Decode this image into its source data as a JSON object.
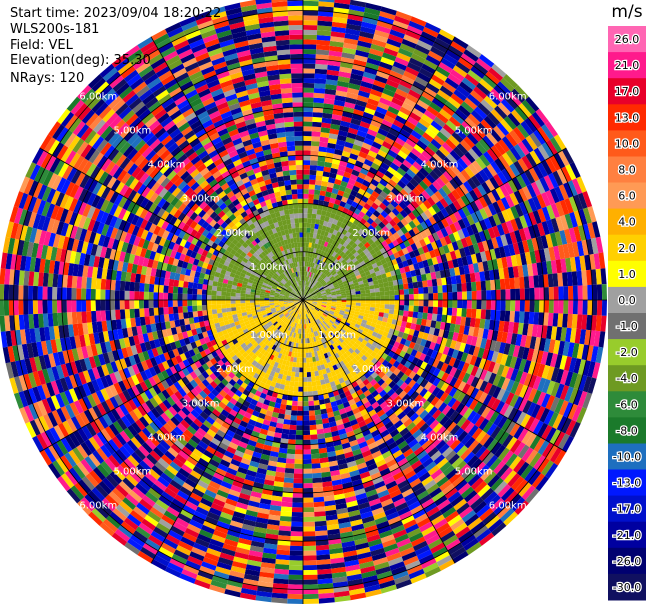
{
  "header": {
    "start_time": "Start time: 2023/09/04 18:20:22",
    "instrument": "WLS200s-181",
    "field": "Field: VEL",
    "elevation": "Elevation(deg): 35.30",
    "nrays": "NRays: 120"
  },
  "colorbar": {
    "unit": "m/s",
    "labels": [
      "26.0",
      "21.0",
      "17.0",
      "13.0",
      "10.0",
      "8.0",
      "6.0",
      "4.0",
      "2.0",
      "1.0",
      "0.0",
      "-1.0",
      "-2.0",
      "-4.0",
      "-6.0",
      "-8.0",
      "-10.0",
      "-13.0",
      "-17.0",
      "-21.0",
      "-26.0",
      "-30.0"
    ],
    "colors": [
      "#ff66b3",
      "#ff1a8c",
      "#e8002a",
      "#ff2a00",
      "#ff5a1a",
      "#ff8040",
      "#ff9a55",
      "#ffb000",
      "#ffd000",
      "#ffff00",
      "#a0a0a0",
      "#707070",
      "#98cc2c",
      "#6e9a22",
      "#2e8b3a",
      "#1b7a2b",
      "#1e6fbf",
      "#0018ff",
      "#0010cc",
      "#0000a0",
      "#000070",
      "#101060"
    ]
  },
  "chart_data": {
    "type": "heatmap",
    "projection": "polar PPI",
    "field": "VEL",
    "unit": "m/s",
    "nrays": 120,
    "range_rings_km": [
      1.0,
      2.0,
      3.0,
      4.0,
      5.0,
      6.0
    ],
    "range_ring_labels": [
      "1.00km",
      "2.00km",
      "3.00km",
      "4.00km",
      "5.00km",
      "6.00km"
    ],
    "max_range_km": 6.3,
    "color_levels": [
      -30,
      -26,
      -21,
      -17,
      -13,
      -10,
      -8,
      -6,
      -4,
      -2,
      -1,
      0,
      1,
      2,
      4,
      6,
      8,
      10,
      13,
      17,
      21,
      26
    ],
    "regions": [
      {
        "sector": "north",
        "range_km": [
          0.0,
          2.0
        ],
        "typical_velocity": -3
      },
      {
        "sector": "south",
        "range_km": [
          0.0,
          2.0
        ],
        "typical_velocity": 2
      },
      {
        "sector": "all",
        "range_km": [
          2.0,
          6.3
        ],
        "typical_velocity": "noise"
      }
    ]
  }
}
